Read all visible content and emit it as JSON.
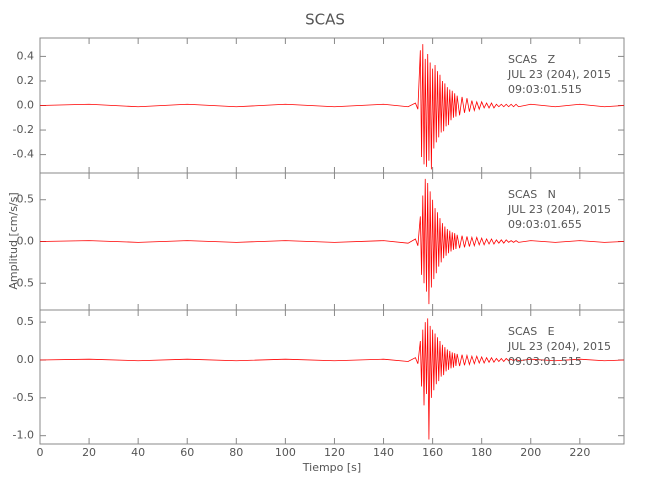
{
  "figure": {
    "title": "SCAS",
    "x_label": "Tiempo [s]",
    "y_label": "Amplitud [cm/s/s]"
  },
  "chart_data": [
    {
      "type": "line",
      "color": "#ff0000",
      "annotations": [
        "SCAS   Z",
        "JUL 23 (204), 2015",
        "09:03:01.515"
      ],
      "xlim": [
        0,
        238
      ],
      "xticks": [
        0,
        20,
        40,
        60,
        80,
        100,
        120,
        140,
        160,
        180,
        200,
        220
      ],
      "ylim": [
        -0.55,
        0.55
      ],
      "yticks": [
        -0.4,
        -0.2,
        {
          "value": 0,
          "label": "0.0"
        },
        0.2,
        0.4
      ],
      "x": [
        0,
        20,
        40,
        60,
        80,
        100,
        120,
        140,
        150,
        153,
        154,
        155,
        155.5,
        156,
        156.5,
        157,
        157.5,
        158,
        158.5,
        159,
        159.5,
        160,
        160.5,
        161,
        161.5,
        162,
        162.5,
        163,
        163.5,
        164,
        164.5,
        165,
        165.5,
        166,
        166.5,
        167,
        167.5,
        168,
        168.5,
        169,
        169.5,
        170,
        171,
        172,
        173,
        174,
        175,
        176,
        177,
        178,
        179,
        180,
        181,
        182,
        183,
        184,
        185,
        186,
        187,
        188,
        189,
        190,
        191,
        192,
        193,
        194,
        195,
        200,
        210,
        220,
        230,
        238
      ],
      "series": [
        {
          "values": [
            0,
            0.01,
            -0.01,
            0.01,
            -0.01,
            0.01,
            -0.01,
            0.01,
            -0.01,
            0.02,
            -0.03,
            0.45,
            -0.42,
            0.5,
            -0.48,
            0.38,
            -0.5,
            0.42,
            -0.45,
            0.35,
            -0.52,
            0.3,
            -0.35,
            0.33,
            -0.3,
            0.28,
            -0.26,
            0.25,
            -0.22,
            0.2,
            -0.21,
            0.18,
            -0.17,
            0.15,
            -0.16,
            0.13,
            -0.12,
            0.12,
            -0.1,
            0.1,
            -0.09,
            0.08,
            -0.08,
            0.07,
            -0.06,
            0.06,
            -0.05,
            0.04,
            -0.04,
            0.03,
            -0.03,
            0.03,
            -0.02,
            0.02,
            -0.02,
            0.02,
            -0.02,
            0.01,
            -0.01,
            0.01,
            -0.01,
            0.01,
            -0.01,
            0.01,
            -0.01,
            0.01,
            -0.01,
            0.01,
            -0.01,
            0.01,
            -0.01,
            0
          ]
        }
      ]
    },
    {
      "type": "line",
      "color": "#ff0000",
      "annotations": [
        "SCAS   N",
        "JUL 23 (204), 2015",
        "09:03:01.655"
      ],
      "xlim": [
        0,
        238
      ],
      "xticks": [
        0,
        20,
        40,
        60,
        80,
        100,
        120,
        140,
        160,
        180,
        200,
        220
      ],
      "ylim": [
        -0.82,
        0.82
      ],
      "yticks": [
        -0.5,
        {
          "value": 0,
          "label": "0.0"
        },
        0.5
      ],
      "x": [
        0,
        20,
        40,
        60,
        80,
        100,
        120,
        140,
        150,
        153,
        154,
        155,
        155.5,
        156,
        156.5,
        157,
        157.5,
        158,
        158.5,
        159,
        159.5,
        160,
        160.5,
        161,
        161.5,
        162,
        162.5,
        163,
        163.5,
        164,
        164.5,
        165,
        165.5,
        166,
        166.5,
        167,
        167.5,
        168,
        168.5,
        169,
        169.5,
        170,
        171,
        172,
        173,
        174,
        175,
        176,
        177,
        178,
        179,
        180,
        181,
        182,
        183,
        184,
        185,
        186,
        187,
        188,
        189,
        190,
        191,
        192,
        193,
        194,
        195,
        200,
        210,
        220,
        230,
        238
      ],
      "series": [
        {
          "values": [
            0,
            0.01,
            -0.01,
            0.01,
            -0.01,
            0.01,
            -0.01,
            0.01,
            -0.02,
            0.03,
            -0.05,
            0.3,
            -0.4,
            0.55,
            -0.5,
            0.75,
            -0.6,
            0.7,
            -0.75,
            0.6,
            -0.55,
            0.5,
            -0.45,
            0.4,
            -0.38,
            0.35,
            -0.3,
            0.28,
            -0.25,
            0.22,
            -0.2,
            0.18,
            -0.17,
            0.15,
            -0.14,
            0.13,
            -0.12,
            0.11,
            -0.1,
            0.1,
            -0.09,
            0.08,
            -0.08,
            0.07,
            -0.07,
            0.06,
            -0.06,
            0.05,
            -0.05,
            0.05,
            -0.04,
            0.04,
            -0.04,
            0.03,
            -0.03,
            0.03,
            -0.03,
            0.02,
            -0.02,
            0.02,
            -0.02,
            0.02,
            -0.01,
            0.01,
            -0.01,
            0.01,
            -0.01,
            0.01,
            -0.01,
            0.01,
            -0.01,
            0
          ]
        }
      ]
    },
    {
      "type": "line",
      "color": "#ff0000",
      "annotations": [
        "SCAS   E",
        "JUL 23 (204), 2015",
        "09:03:01.515"
      ],
      "xlim": [
        0,
        238
      ],
      "xticks": [
        0,
        20,
        40,
        60,
        80,
        100,
        120,
        140,
        160,
        180,
        200,
        220
      ],
      "ylim": [
        -1.11,
        0.66
      ],
      "yticks": [
        {
          "value": -1,
          "label": "-1.0"
        },
        -0.5,
        {
          "value": 0,
          "label": "0.0"
        },
        0.5
      ],
      "x": [
        0,
        20,
        40,
        60,
        80,
        100,
        120,
        140,
        150,
        153,
        154,
        155,
        155.5,
        156,
        156.5,
        157,
        157.5,
        158,
        158.5,
        159,
        159.5,
        160,
        160.5,
        161,
        161.5,
        162,
        162.5,
        163,
        163.5,
        164,
        164.5,
        165,
        165.5,
        166,
        166.5,
        167,
        167.5,
        168,
        168.5,
        169,
        169.5,
        170,
        171,
        172,
        173,
        174,
        175,
        176,
        177,
        178,
        179,
        180,
        181,
        182,
        183,
        184,
        185,
        186,
        187,
        188,
        189,
        190,
        191,
        192,
        193,
        194,
        195,
        200,
        210,
        220,
        230,
        238
      ],
      "series": [
        {
          "values": [
            0,
            0.01,
            -0.01,
            0.01,
            -0.01,
            0.01,
            -0.01,
            0.01,
            -0.02,
            0.03,
            -0.05,
            0.25,
            -0.35,
            0.4,
            -0.6,
            0.5,
            -0.45,
            0.55,
            -1.05,
            0.45,
            -0.5,
            0.4,
            -0.4,
            0.35,
            -0.32,
            0.3,
            -0.28,
            0.25,
            -0.22,
            0.2,
            -0.2,
            0.17,
            -0.15,
            0.14,
            -0.13,
            0.12,
            -0.11,
            0.1,
            -0.1,
            0.09,
            -0.08,
            0.08,
            -0.08,
            0.07,
            -0.07,
            0.06,
            -0.06,
            0.05,
            -0.05,
            0.05,
            -0.04,
            0.04,
            -0.04,
            0.03,
            -0.03,
            0.03,
            -0.03,
            0.02,
            -0.02,
            0.02,
            -0.02,
            0.02,
            -0.01,
            0.01,
            -0.01,
            0.01,
            -0.01,
            0.01,
            -0.01,
            0.01,
            -0.01,
            0
          ]
        }
      ]
    }
  ]
}
